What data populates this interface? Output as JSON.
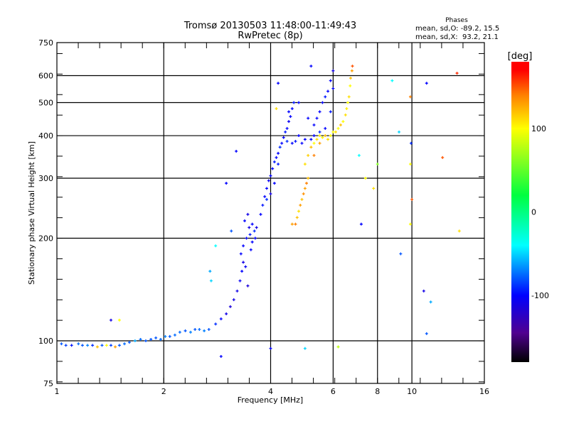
{
  "chart_data": {
    "type": "scatter",
    "title": "Tromsø 20130503 11:48:00-11:49:43",
    "subtitle": "RwPretec (8p)",
    "xlabel": "Frequency [MHz]",
    "ylabel": "Stationary phase Virtual Height [km]",
    "xscale": "log",
    "yscale": "log",
    "xlim": [
      1,
      16
    ],
    "ylim": [
      75,
      750
    ],
    "xticks": [
      1,
      2,
      4,
      6,
      8,
      10,
      16
    ],
    "xtick_labels": [
      "1",
      "2",
      "4",
      "6",
      "8",
      "10",
      "16"
    ],
    "yticks": [
      75,
      100,
      200,
      300,
      400,
      500,
      600,
      750
    ],
    "ytick_labels": [
      "75",
      "100",
      "200",
      "300",
      "400",
      "500",
      "600",
      "750"
    ],
    "xgrid": [
      2,
      4,
      6,
      8,
      10
    ],
    "ygrid": [
      100,
      200,
      300,
      400,
      500,
      600
    ],
    "stats": {
      "heading": "Phases",
      "o_line": "mean, sd,O: -89.2, 15.5",
      "x_line": "mean, sd,X:  93.2, 21.1"
    },
    "colorbar": {
      "label": "[deg]",
      "range": [
        -180,
        180
      ],
      "ticks": [
        100,
        0,
        -100
      ],
      "tick_labels": [
        "100",
        "0",
        "-100"
      ],
      "stops": [
        [
          -180,
          "#000000"
        ],
        [
          -145,
          "#500090"
        ],
        [
          -100,
          "#0000ff"
        ],
        [
          -40,
          "#00ffff"
        ],
        [
          20,
          "#00ff40"
        ],
        [
          100,
          "#ffff00"
        ],
        [
          140,
          "#ff8000"
        ],
        [
          170,
          "#ff0000"
        ],
        [
          180,
          "#ff0000"
        ]
      ]
    },
    "point_columns": [
      "frequency_mhz",
      "height_km",
      "phase_deg"
    ],
    "points": [
      [
        1.03,
        98,
        -80
      ],
      [
        1.06,
        97,
        -85
      ],
      [
        1.1,
        97,
        -95
      ],
      [
        1.15,
        98,
        -75
      ],
      [
        1.18,
        97,
        -80
      ],
      [
        1.22,
        97,
        -70
      ],
      [
        1.26,
        97,
        -90
      ],
      [
        1.3,
        96,
        120
      ],
      [
        1.34,
        97,
        -80
      ],
      [
        1.38,
        97,
        100
      ],
      [
        1.42,
        97,
        -85
      ],
      [
        1.46,
        96,
        130
      ],
      [
        1.5,
        97,
        -80
      ],
      [
        1.55,
        98,
        -75
      ],
      [
        1.6,
        99,
        -80
      ],
      [
        1.66,
        100,
        -60
      ],
      [
        1.72,
        101,
        -75
      ],
      [
        1.78,
        100,
        -80
      ],
      [
        1.84,
        101,
        -80
      ],
      [
        1.9,
        102,
        -80
      ],
      [
        1.96,
        101,
        -75
      ],
      [
        2.02,
        103,
        -70
      ],
      [
        2.08,
        103,
        -80
      ],
      [
        2.15,
        104,
        -75
      ],
      [
        2.22,
        106,
        -75
      ],
      [
        2.3,
        107,
        -80
      ],
      [
        2.38,
        106,
        -70
      ],
      [
        2.45,
        108,
        -80
      ],
      [
        2.52,
        108,
        -75
      ],
      [
        2.6,
        107,
        -70
      ],
      [
        2.68,
        108,
        -80
      ],
      [
        2.8,
        112,
        -90
      ],
      [
        2.9,
        116,
        -100
      ],
      [
        3.0,
        120,
        -110
      ],
      [
        3.08,
        126,
        -115
      ],
      [
        3.15,
        132,
        -110
      ],
      [
        3.22,
        140,
        -110
      ],
      [
        3.28,
        150,
        -105
      ],
      [
        3.32,
        160,
        -100
      ],
      [
        3.35,
        170,
        -110
      ],
      [
        3.3,
        180,
        -100
      ],
      [
        3.35,
        190,
        -100
      ],
      [
        3.42,
        200,
        -100
      ],
      [
        3.5,
        205,
        -95
      ],
      [
        3.55,
        195,
        -100
      ],
      [
        3.6,
        210,
        -90
      ],
      [
        3.48,
        215,
        -110
      ],
      [
        3.38,
        225,
        -100
      ],
      [
        3.45,
        235,
        -110
      ],
      [
        3.52,
        185,
        -100
      ],
      [
        3.4,
        165,
        -105
      ],
      [
        3.45,
        145,
        -115
      ],
      [
        3.55,
        220,
        -100
      ],
      [
        3.62,
        200,
        -100
      ],
      [
        3.65,
        215,
        -110
      ],
      [
        3.75,
        235,
        -100
      ],
      [
        3.8,
        250,
        -95
      ],
      [
        3.85,
        265,
        -100
      ],
      [
        3.9,
        280,
        -100
      ],
      [
        3.95,
        295,
        -105
      ],
      [
        4.0,
        305,
        -100
      ],
      [
        4.05,
        320,
        -100
      ],
      [
        4.1,
        335,
        -95
      ],
      [
        4.15,
        345,
        -100
      ],
      [
        4.2,
        355,
        -100
      ],
      [
        4.25,
        370,
        -90
      ],
      [
        4.3,
        380,
        -100
      ],
      [
        4.35,
        395,
        -100
      ],
      [
        4.4,
        410,
        -95
      ],
      [
        4.45,
        420,
        -100
      ],
      [
        4.5,
        440,
        -105
      ],
      [
        4.55,
        455,
        -100
      ],
      [
        4.45,
        385,
        -90
      ],
      [
        4.6,
        380,
        -100
      ],
      [
        4.7,
        385,
        -95
      ],
      [
        4.8,
        400,
        -100
      ],
      [
        4.9,
        380,
        -100
      ],
      [
        5.0,
        390,
        -100
      ],
      [
        4.5,
        470,
        -100
      ],
      [
        4.6,
        480,
        -100
      ],
      [
        4.65,
        500,
        -95
      ],
      [
        4.8,
        500,
        -100
      ],
      [
        5.1,
        450,
        -100
      ],
      [
        5.3,
        430,
        -100
      ],
      [
        5.4,
        450,
        -100
      ],
      [
        5.5,
        470,
        -100
      ],
      [
        5.6,
        500,
        -100
      ],
      [
        5.7,
        520,
        -95
      ],
      [
        5.8,
        540,
        -100
      ],
      [
        5.9,
        580,
        -100
      ],
      [
        6.0,
        620,
        -110
      ],
      [
        6.0,
        550,
        -100
      ],
      [
        5.9,
        470,
        -95
      ],
      [
        5.7,
        420,
        -100
      ],
      [
        5.5,
        410,
        -90
      ],
      [
        5.3,
        400,
        -100
      ],
      [
        5.2,
        390,
        -100
      ],
      [
        3.9,
        260,
        -90
      ],
      [
        4.1,
        290,
        -100
      ],
      [
        4.0,
        270,
        -110
      ],
      [
        4.2,
        330,
        -95
      ],
      [
        4.6,
        220,
        130
      ],
      [
        4.7,
        220,
        140
      ],
      [
        4.75,
        230,
        120
      ],
      [
        4.8,
        240,
        110
      ],
      [
        4.85,
        250,
        130
      ],
      [
        4.9,
        260,
        120
      ],
      [
        4.95,
        270,
        135
      ],
      [
        5.0,
        280,
        130
      ],
      [
        5.05,
        290,
        140
      ],
      [
        5.1,
        300,
        120
      ],
      [
        5.0,
        330,
        110
      ],
      [
        5.1,
        350,
        115
      ],
      [
        5.2,
        370,
        120
      ],
      [
        5.3,
        380,
        100
      ],
      [
        5.4,
        390,
        110
      ],
      [
        5.5,
        400,
        105
      ],
      [
        5.6,
        395,
        100
      ],
      [
        5.7,
        400,
        120
      ],
      [
        5.8,
        390,
        110
      ],
      [
        5.9,
        400,
        100
      ],
      [
        6.0,
        410,
        100
      ],
      [
        6.1,
        410,
        110
      ],
      [
        6.2,
        420,
        100
      ],
      [
        6.3,
        430,
        120
      ],
      [
        6.4,
        440,
        100
      ],
      [
        6.5,
        460,
        110
      ],
      [
        6.55,
        480,
        105
      ],
      [
        6.6,
        500,
        100
      ],
      [
        6.65,
        520,
        110
      ],
      [
        6.7,
        560,
        100
      ],
      [
        6.72,
        590,
        120
      ],
      [
        6.78,
        620,
        130
      ],
      [
        6.8,
        640,
        150
      ],
      [
        5.3,
        350,
        140
      ],
      [
        5.5,
        380,
        130
      ],
      [
        4.0,
        95,
        -100
      ],
      [
        4.2,
        570,
        -100
      ],
      [
        4.15,
        480,
        110
      ],
      [
        2.8,
        190,
        -40
      ],
      [
        2.7,
        160,
        -60
      ],
      [
        2.72,
        150,
        -50
      ],
      [
        1.42,
        115,
        -110
      ],
      [
        1.5,
        115,
        100
      ],
      [
        2.9,
        90,
        -100
      ],
      [
        3.2,
        360,
        -100
      ],
      [
        3.1,
        210,
        -80
      ],
      [
        3.0,
        290,
        -100
      ],
      [
        5.2,
        640,
        -100
      ],
      [
        7.2,
        220,
        -100
      ],
      [
        7.1,
        350,
        -40
      ],
      [
        7.4,
        300,
        100
      ],
      [
        8.8,
        580,
        -40
      ],
      [
        9.2,
        410,
        -50
      ],
      [
        9.3,
        180,
        -80
      ],
      [
        9.9,
        520,
        140
      ],
      [
        9.95,
        380,
        -90
      ],
      [
        9.9,
        330,
        100
      ],
      [
        10.0,
        260,
        150
      ],
      [
        9.9,
        220,
        100
      ],
      [
        11.0,
        570,
        -100
      ],
      [
        11.3,
        130,
        -60
      ],
      [
        10.8,
        140,
        -110
      ],
      [
        11.0,
        105,
        -80
      ],
      [
        12.2,
        345,
        150
      ],
      [
        13.4,
        610,
        160
      ],
      [
        13.6,
        210,
        110
      ],
      [
        8.0,
        330,
        60
      ],
      [
        7.8,
        280,
        110
      ],
      [
        6.2,
        96,
        80
      ],
      [
        5.0,
        95,
        -50
      ]
    ]
  }
}
